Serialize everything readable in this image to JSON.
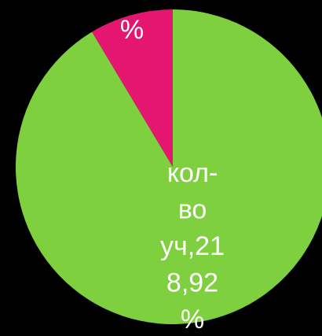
{
  "chart_data": {
    "type": "pie",
    "values": [
      91.4,
      8.6
    ],
    "colors": [
      "#7ed03f",
      "#e5166f"
    ],
    "labels": [
      [
        "кол-",
        "во",
        "уч,21",
        "8,92",
        "%"
      ],
      [
        "%"
      ]
    ]
  }
}
